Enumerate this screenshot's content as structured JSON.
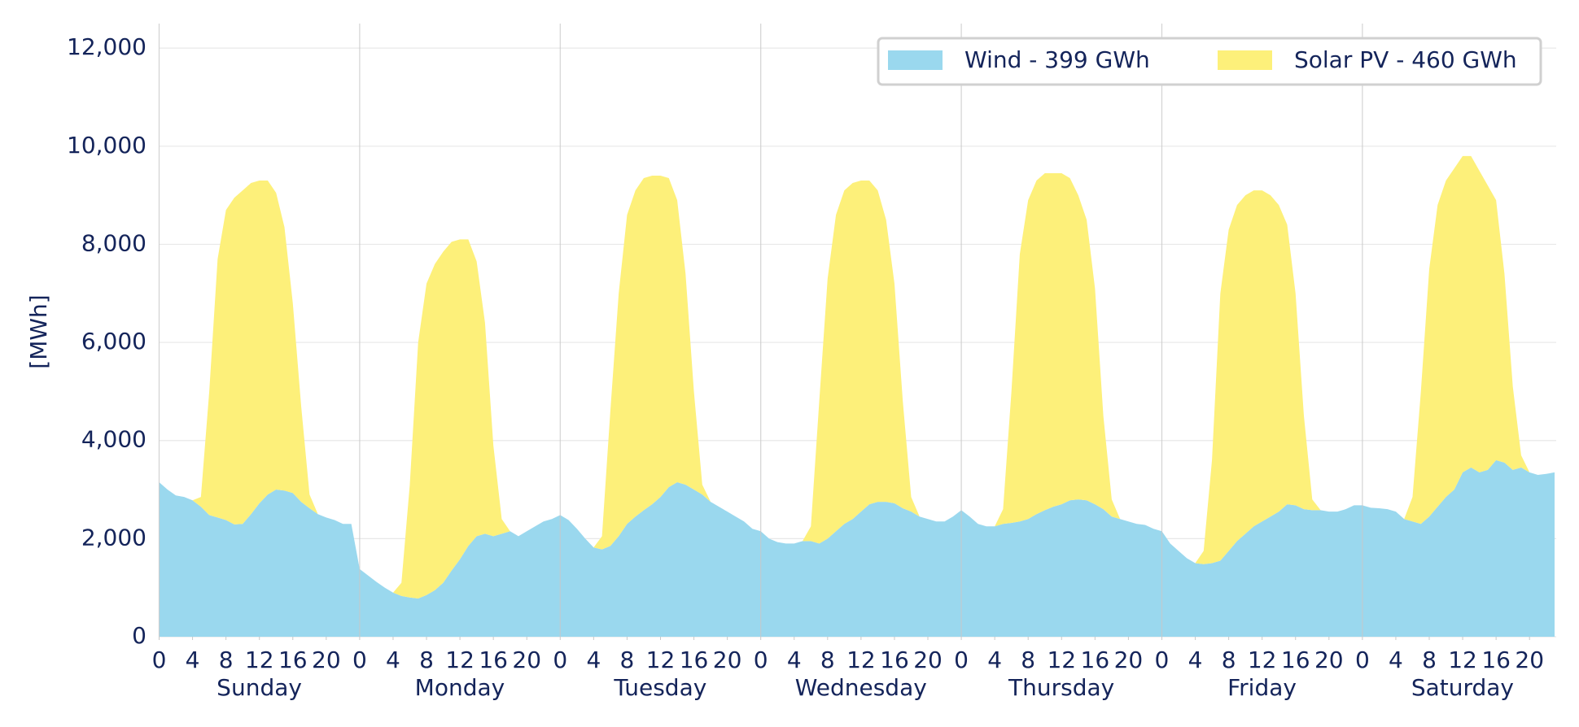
{
  "chart_data": {
    "type": "stacked-area",
    "y_label": "[MWh]",
    "days": [
      "Sunday",
      "Monday",
      "Tuesday",
      "Wednesday",
      "Thursday",
      "Friday",
      "Saturday"
    ],
    "x": [
      0,
      1,
      2,
      3,
      4,
      5,
      6,
      7,
      8,
      9,
      10,
      11,
      12,
      13,
      14,
      15,
      16,
      17,
      18,
      19,
      20,
      21,
      22,
      23,
      24,
      25,
      26,
      27,
      28,
      29,
      30,
      31,
      32,
      33,
      34,
      35,
      36,
      37,
      38,
      39,
      40,
      41,
      42,
      43,
      44,
      45,
      46,
      47,
      48,
      49,
      50,
      51,
      52,
      53,
      54,
      55,
      56,
      57,
      58,
      59,
      60,
      61,
      62,
      63,
      64,
      65,
      66,
      67,
      68,
      69,
      70,
      71,
      72,
      73,
      74,
      75,
      76,
      77,
      78,
      79,
      80,
      81,
      82,
      83,
      84,
      85,
      86,
      87,
      88,
      89,
      90,
      91,
      92,
      93,
      94,
      95,
      96,
      97,
      98,
      99,
      100,
      101,
      102,
      103,
      104,
      105,
      106,
      107,
      108,
      109,
      110,
      111,
      112,
      113,
      114,
      115,
      116,
      117,
      118,
      119,
      120,
      121,
      122,
      123,
      124,
      125,
      126,
      127,
      128,
      129,
      130,
      131,
      132,
      133,
      134,
      135,
      136,
      137,
      138,
      139,
      140,
      141,
      142,
      143,
      144,
      145,
      146,
      147,
      148,
      149,
      150,
      151,
      152,
      153,
      154,
      155,
      156,
      157,
      158,
      159,
      160,
      161,
      162,
      163,
      164,
      165,
      166,
      167
    ],
    "xlim": [
      0,
      167
    ],
    "xticks": [
      0,
      4,
      8,
      12,
      16,
      20,
      {
        "value": 24,
        "label": "0"
      },
      {
        "value": 28,
        "label": "4"
      },
      {
        "value": 32,
        "label": "8"
      },
      {
        "value": 36,
        "label": "12"
      },
      {
        "value": 40,
        "label": "16"
      },
      {
        "value": 44,
        "label": "20"
      },
      {
        "value": 48,
        "label": "0"
      },
      {
        "value": 52,
        "label": "4"
      },
      {
        "value": 56,
        "label": "8"
      },
      {
        "value": 60,
        "label": "12"
      },
      {
        "value": 64,
        "label": "16"
      },
      {
        "value": 68,
        "label": "20"
      },
      {
        "value": 72,
        "label": "0"
      },
      {
        "value": 76,
        "label": "4"
      },
      {
        "value": 80,
        "label": "8"
      },
      {
        "value": 84,
        "label": "12"
      },
      {
        "value": 88,
        "label": "16"
      },
      {
        "value": 92,
        "label": "20"
      },
      {
        "value": 96,
        "label": "0"
      },
      {
        "value": 100,
        "label": "4"
      },
      {
        "value": 104,
        "label": "8"
      },
      {
        "value": 108,
        "label": "12"
      },
      {
        "value": 112,
        "label": "16"
      },
      {
        "value": 116,
        "label": "20"
      },
      {
        "value": 120,
        "label": "0"
      },
      {
        "value": 124,
        "label": "4"
      },
      {
        "value": 128,
        "label": "8"
      },
      {
        "value": 132,
        "label": "12"
      },
      {
        "value": 136,
        "label": "16"
      },
      {
        "value": 140,
        "label": "20"
      },
      {
        "value": 144,
        "label": "0"
      },
      {
        "value": 148,
        "label": "4"
      },
      {
        "value": 152,
        "label": "8"
      },
      {
        "value": 156,
        "label": "12"
      },
      {
        "value": 160,
        "label": "16"
      },
      {
        "value": 164,
        "label": "20"
      }
    ],
    "ylim": [
      0,
      12500
    ],
    "yticks": [
      0,
      {
        "value": 2000,
        "label": "2,000"
      },
      {
        "value": 4000,
        "label": "4,000"
      },
      {
        "value": 6000,
        "label": "6,000"
      },
      {
        "value": 8000,
        "label": "8,000"
      },
      {
        "value": 10000,
        "label": "10,000"
      },
      {
        "value": 12000,
        "label": "12,000"
      }
    ],
    "grid": true,
    "legend": "upper right",
    "series": [
      {
        "name": "Wind - 399 GWh",
        "color": "#9ad8ee",
        "values": [
          3150,
          3000,
          2880,
          2850,
          2780,
          2650,
          2480,
          2430,
          2380,
          2290,
          2300,
          2500,
          2720,
          2900,
          3000,
          2980,
          2930,
          2750,
          2620,
          2500,
          2430,
          2380,
          2300,
          2300,
          1380,
          1250,
          1120,
          1000,
          900,
          830,
          800,
          780,
          850,
          950,
          1100,
          1350,
          1580,
          1850,
          2050,
          2100,
          2050,
          2100,
          2150,
          2050,
          2150,
          2250,
          2350,
          2400,
          2480,
          2380,
          2200,
          2000,
          1820,
          1780,
          1850,
          2050,
          2300,
          2450,
          2580,
          2700,
          2850,
          3050,
          3150,
          3100,
          3000,
          2900,
          2750,
          2650,
          2550,
          2450,
          2350,
          2200,
          2150,
          2000,
          1930,
          1900,
          1900,
          1950,
          1950,
          1900,
          2000,
          2150,
          2300,
          2400,
          2550,
          2700,
          2750,
          2750,
          2720,
          2620,
          2550,
          2450,
          2400,
          2350,
          2350,
          2450,
          2580,
          2450,
          2300,
          2250,
          2250,
          2300,
          2320,
          2350,
          2400,
          2500,
          2580,
          2650,
          2700,
          2780,
          2800,
          2780,
          2700,
          2600,
          2450,
          2400,
          2350,
          2300,
          2280,
          2200,
          2150,
          1900,
          1750,
          1600,
          1500,
          1480,
          1500,
          1550,
          1750,
          1950,
          2100,
          2250,
          2350,
          2450,
          2550,
          2700,
          2680,
          2600,
          2580,
          2580,
          2550,
          2550,
          2600,
          2680,
          2680,
          2630,
          2620,
          2600,
          2550,
          2400,
          2350,
          2300,
          2450,
          2650,
          2850,
          3000,
          3350,
          3450,
          3350,
          3400,
          3600,
          3550,
          3400,
          3450,
          3350,
          3300,
          3320,
          3350
        ]
      },
      {
        "name": "Solar PV - 460 GWh",
        "color": "#fdf07a",
        "values": [
          0,
          0,
          0,
          0,
          0,
          200,
          2520,
          5270,
          6320,
          6660,
          6800,
          6750,
          6580,
          6400,
          6050,
          5370,
          3870,
          1950,
          280,
          0,
          0,
          0,
          0,
          0,
          0,
          0,
          0,
          0,
          0,
          270,
          2300,
          5220,
          6350,
          6650,
          6750,
          6700,
          6520,
          6250,
          5600,
          4300,
          1850,
          300,
          0,
          0,
          0,
          0,
          0,
          0,
          0,
          0,
          0,
          0,
          0,
          270,
          2750,
          4950,
          6300,
          6650,
          6770,
          6700,
          6550,
          6300,
          5750,
          4300,
          2000,
          200,
          0,
          0,
          0,
          0,
          0,
          0,
          0,
          0,
          0,
          0,
          0,
          0,
          300,
          2900,
          5300,
          6450,
          6800,
          6850,
          6750,
          6600,
          6350,
          5750,
          4480,
          2180,
          300,
          0,
          0,
          0,
          0,
          0,
          0,
          0,
          0,
          0,
          0,
          300,
          2680,
          5450,
          6500,
          6800,
          6870,
          6800,
          6750,
          6570,
          6200,
          5720,
          4400,
          1900,
          350,
          0,
          0,
          0,
          0,
          0,
          0,
          0,
          0,
          0,
          0,
          270,
          2100,
          5450,
          6550,
          6850,
          6900,
          6850,
          6750,
          6550,
          6250,
          5700,
          4320,
          1900,
          220,
          0,
          0,
          0,
          0,
          0,
          0,
          0,
          0,
          0,
          0,
          0,
          500,
          2700,
          5050,
          6150,
          6450,
          6550,
          6450,
          6350,
          6150,
          5800,
          5300,
          3850,
          1700,
          250,
          0,
          0,
          0,
          0
        ]
      }
    ]
  }
}
